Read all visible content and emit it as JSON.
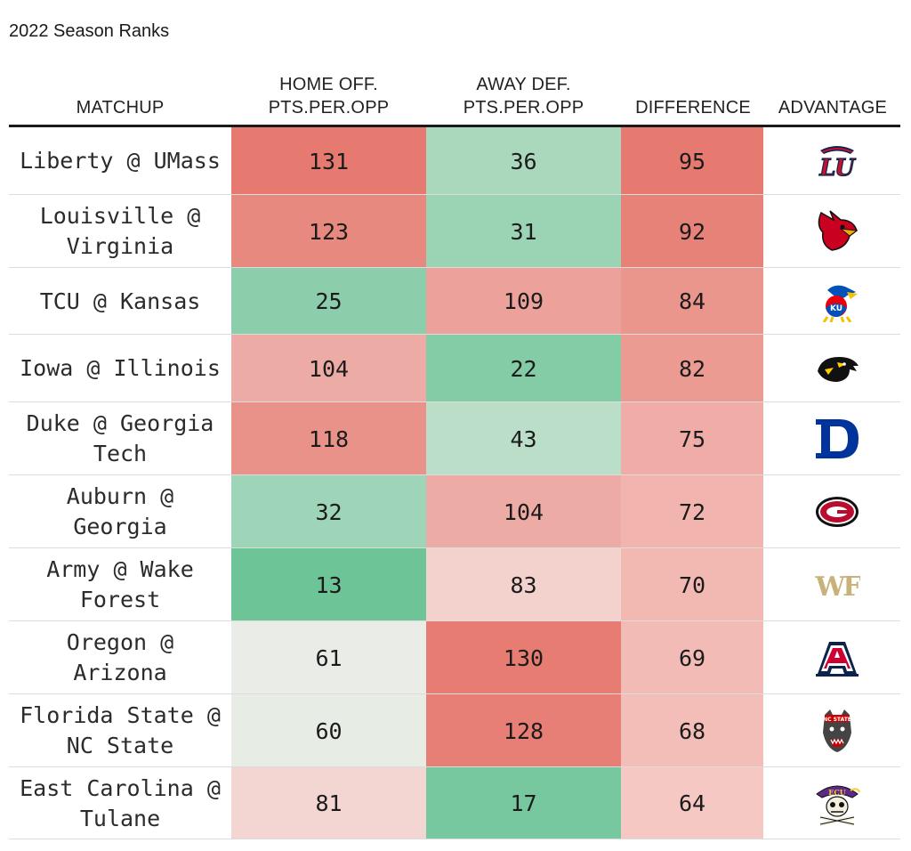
{
  "subtitle": "2022 Season Ranks",
  "headers": {
    "matchup": [
      "MATCHUP"
    ],
    "home_off": [
      "HOME OFF.",
      "PTS.PER.OPP"
    ],
    "away_def": [
      "AWAY DEF.",
      "PTS.PER.OPP"
    ],
    "difference": [
      "DIFFERENCE"
    ],
    "advantage": [
      "ADVANTAGE"
    ]
  },
  "chart_data": {
    "type": "table",
    "title": "2022 Season Ranks",
    "columns": [
      "MATCHUP",
      "HOME OFF. PTS.PER.OPP",
      "AWAY DEF. PTS.PER.OPP",
      "DIFFERENCE",
      "ADVANTAGE"
    ],
    "rows": [
      {
        "matchup": [
          "Liberty @ UMass"
        ],
        "home_off": 131,
        "away_def": 36,
        "difference": 95,
        "advantage_logo": "liberty-logo-icon"
      },
      {
        "matchup": [
          "Louisville @",
          "Virginia"
        ],
        "home_off": 123,
        "away_def": 31,
        "difference": 92,
        "advantage_logo": "louisville-cardinal-logo-icon"
      },
      {
        "matchup": [
          "TCU @ Kansas"
        ],
        "home_off": 25,
        "away_def": 109,
        "difference": 84,
        "advantage_logo": "kansas-jayhawk-logo-icon"
      },
      {
        "matchup": [
          "Iowa @ Illinois"
        ],
        "home_off": 104,
        "away_def": 22,
        "difference": 82,
        "advantage_logo": "iowa-hawkeye-logo-icon"
      },
      {
        "matchup": [
          "Duke @ Georgia",
          "Tech"
        ],
        "home_off": 118,
        "away_def": 43,
        "difference": 75,
        "advantage_logo": "duke-d-logo-icon"
      },
      {
        "matchup": [
          "Auburn @",
          "Georgia"
        ],
        "home_off": 32,
        "away_def": 104,
        "difference": 72,
        "advantage_logo": "georgia-g-logo-icon"
      },
      {
        "matchup": [
          "Army @ Wake",
          "Forest"
        ],
        "home_off": 13,
        "away_def": 83,
        "difference": 70,
        "advantage_logo": "wake-forest-wf-logo-icon"
      },
      {
        "matchup": [
          "Oregon @",
          "Arizona"
        ],
        "home_off": 61,
        "away_def": 130,
        "difference": 69,
        "advantage_logo": "arizona-a-logo-icon"
      },
      {
        "matchup": [
          "Florida State @",
          "NC State"
        ],
        "home_off": 60,
        "away_def": 128,
        "difference": 68,
        "advantage_logo": "nc-state-wolf-logo-icon"
      },
      {
        "matchup": [
          "East Carolina @",
          "Tulane"
        ],
        "home_off": 81,
        "away_def": 17,
        "difference": 64,
        "advantage_logo": "east-carolina-pirate-logo-icon"
      }
    ],
    "color_scale": {
      "low": "#4dba83",
      "mid": "#f7f1ef",
      "high": "#e67a70"
    }
  }
}
